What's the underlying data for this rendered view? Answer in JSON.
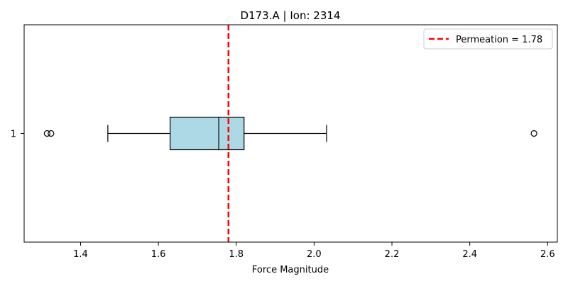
{
  "chart_data": {
    "type": "boxplot",
    "orientation": "horizontal",
    "title": "D173.A | Ion: 2314",
    "xlabel": "Force Magnitude",
    "ylabel": "",
    "xlim": [
      1.255,
      2.625
    ],
    "xticks": [
      1.4,
      1.6,
      1.8,
      2.0,
      2.2,
      2.4,
      2.6
    ],
    "xtick_labels": [
      "1.4",
      "1.6",
      "1.8",
      "2.0",
      "2.2",
      "2.4",
      "2.6"
    ],
    "categories": [
      "1"
    ],
    "boxes": [
      {
        "category": "1",
        "whisker_low": 1.47,
        "q1": 1.63,
        "median": 1.755,
        "q3": 1.82,
        "whisker_high": 2.032,
        "outliers": [
          1.314,
          1.324,
          2.565
        ],
        "fill_color": "#add8e6"
      }
    ],
    "reference_line": {
      "value": 1.78,
      "label": "Permeation = 1.78",
      "color": "#ff0000",
      "style": "dashed"
    },
    "legend": {
      "placement": "top-right",
      "entries": [
        "Permeation = 1.78"
      ]
    },
    "grid": false
  }
}
